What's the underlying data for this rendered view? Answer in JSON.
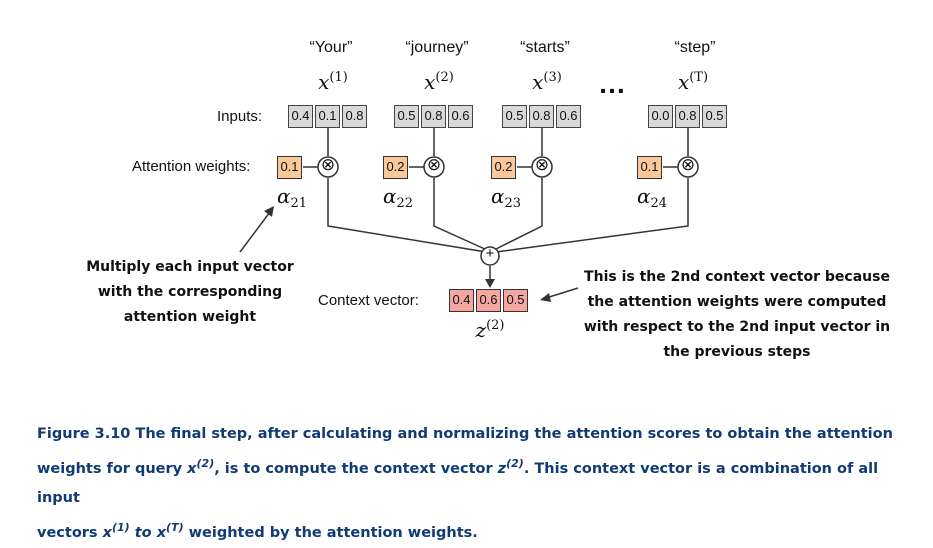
{
  "words": [
    "“Your”",
    "“journey”",
    "“starts”",
    "“step”"
  ],
  "x_labels": [
    {
      "base": "x",
      "sup": "(1)"
    },
    {
      "base": "x",
      "sup": "(2)"
    },
    {
      "base": "x",
      "sup": "(3)"
    },
    {
      "base": "x",
      "sup": "(T)"
    }
  ],
  "ellipsis": "…",
  "inputs_label": "Inputs:",
  "inputs": [
    [
      "0.4",
      "0.1",
      "0.8"
    ],
    [
      "0.5",
      "0.8",
      "0.6"
    ],
    [
      "0.5",
      "0.8",
      "0.6"
    ],
    [
      "0.0",
      "0.8",
      "0.5"
    ]
  ],
  "attention_label": "Attention weights:",
  "weights": [
    "0.1",
    "0.2",
    "0.2",
    "0.1"
  ],
  "alpha_labels": [
    {
      "base": "α",
      "sub": "21"
    },
    {
      "base": "α",
      "sub": "22"
    },
    {
      "base": "α",
      "sub": "23"
    },
    {
      "base": "α",
      "sub": "24"
    }
  ],
  "multiply_symbol": "⊗",
  "plus_symbol": "+",
  "context_label": "Context vector:",
  "context": [
    "0.4",
    "0.6",
    "0.5"
  ],
  "z_label": {
    "base": "z",
    "sup": "(2)"
  },
  "left_note": [
    "Multiply each input vector",
    "with the corresponding",
    "attention weight"
  ],
  "right_note": [
    "This is the 2nd context vector because",
    "the attention weights were computed",
    "with respect to the 2nd input vector in",
    "the previous steps"
  ],
  "caption": {
    "p1": "Figure 3.10 The final step, after calculating and normalizing the attention scores to obtain the attention",
    "p2a": "weights for query ",
    "q_base": "x",
    "q_sup": "(2)",
    "p2b": ", is to compute the context vector ",
    "z_base": "z",
    "z_sup": "(2)",
    "p2c": ". This context vector is a combination of all input",
    "p3a": "vectors ",
    "v1_base": "x",
    "v1_sup": "(1)",
    "to": " to ",
    "vT_base": "x",
    "vT_sup": "(T)",
    "p3b": " weighted by the attention weights."
  },
  "colors": {
    "input_cell": "#d9d9d9",
    "weight_cell": "#f9c99a",
    "context_cell": "#f4a6a1",
    "caption": "#123a73"
  }
}
